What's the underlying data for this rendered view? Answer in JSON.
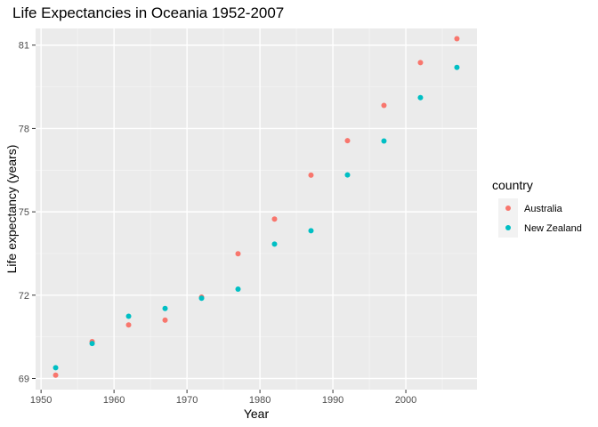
{
  "chart_data": {
    "type": "scatter",
    "title": "Life Expectancies in Oceania 1952-2007",
    "xlabel": "Year",
    "ylabel": "Life expectancy (years)",
    "xlim": [
      1949.25,
      2009.75
    ],
    "ylim": [
      68.6,
      81.6
    ],
    "x_ticks": [
      1950,
      1960,
      1970,
      1980,
      1990,
      2000
    ],
    "y_ticks": [
      69,
      72,
      75,
      78,
      81
    ],
    "grid": true,
    "legend": {
      "title": "country",
      "placement": "right",
      "entries": [
        "Australia",
        "New Zealand"
      ]
    },
    "series": [
      {
        "name": "Australia",
        "color": "#F8766D",
        "x": [
          1952,
          1957,
          1962,
          1967,
          1972,
          1977,
          1982,
          1987,
          1992,
          1997,
          2002,
          2007
        ],
        "y": [
          69.12,
          70.33,
          70.93,
          71.1,
          71.93,
          73.49,
          74.74,
          76.32,
          77.56,
          78.83,
          80.37,
          81.23
        ]
      },
      {
        "name": "New Zealand",
        "color": "#00BFC4",
        "x": [
          1952,
          1957,
          1962,
          1967,
          1972,
          1977,
          1982,
          1987,
          1992,
          1997,
          2002,
          2007
        ],
        "y": [
          69.39,
          70.26,
          71.24,
          71.52,
          71.89,
          72.22,
          73.84,
          74.32,
          76.33,
          77.55,
          79.11,
          80.2
        ]
      }
    ]
  }
}
